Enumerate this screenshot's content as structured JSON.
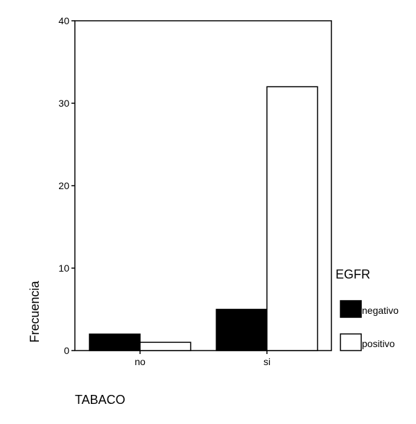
{
  "chart_data": {
    "type": "bar",
    "xlabel": "TABACO",
    "ylabel": "Frecuencia",
    "categories": [
      "no",
      "si"
    ],
    "series": [
      {
        "name": "negativo",
        "values": [
          2,
          5
        ],
        "color": "#000000"
      },
      {
        "name": "positivo",
        "values": [
          1,
          32
        ],
        "color": "#ffffff"
      }
    ],
    "ylim": [
      0,
      40
    ],
    "yticks": [
      0,
      10,
      20,
      30,
      40
    ],
    "legend_title": "EGFR",
    "legend_position": "right",
    "grid": false
  }
}
